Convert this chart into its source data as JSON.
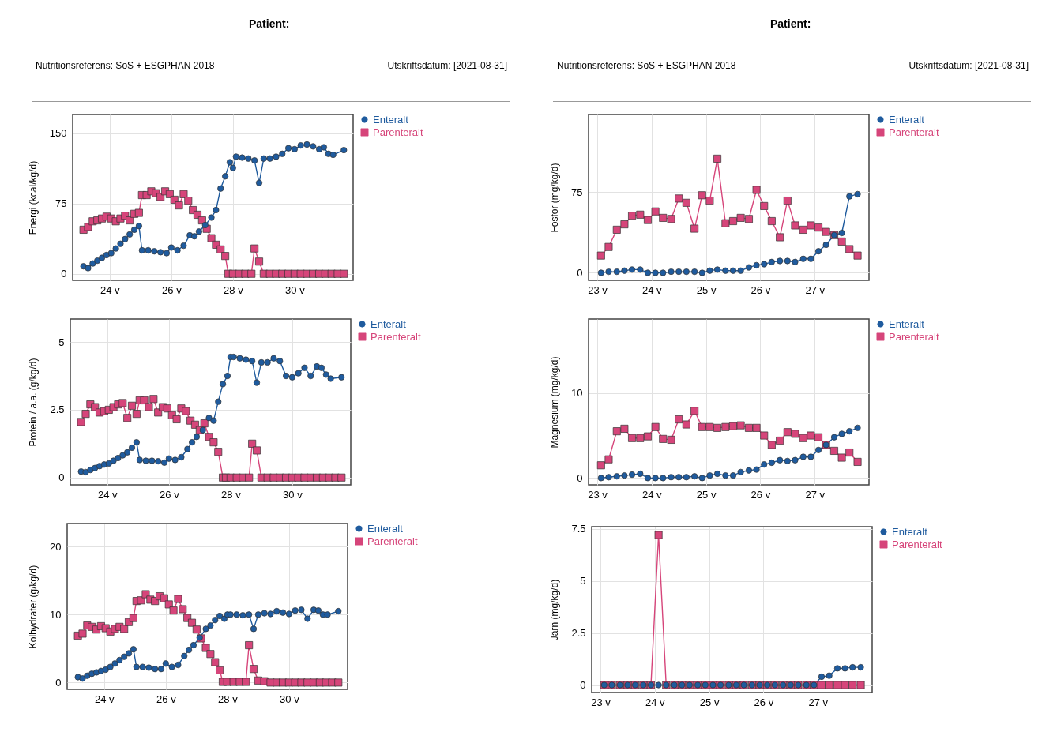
{
  "chart_data": [
    {
      "type": "line",
      "annotations": [
        "Patient:",
        "Nutritionsreferens: SoS + ESGPHAN 2018",
        "Utskriftsdatum: [2021-08-31]"
      ],
      "ylabel": "Energi (kcal/kg/d)",
      "xlim": [
        22.8,
        31.9
      ],
      "xticks": [
        {
          "value": 24,
          "label": "24 v"
        },
        {
          "value": 26,
          "label": "26 v"
        },
        {
          "value": 28,
          "label": "28 v"
        },
        {
          "value": 30,
          "label": "30 v"
        }
      ],
      "ylim": [
        -7,
        170
      ],
      "yticks": [
        0,
        75,
        150
      ],
      "grid": true,
      "legend": "top right",
      "series": [
        {
          "name": "Enteralt",
          "color": "#1f5b9e",
          "marker": "circle",
          "x": [
            23.15,
            23.3,
            23.45,
            23.6,
            23.75,
            23.9,
            24.05,
            24.2,
            24.35,
            24.5,
            24.65,
            24.8,
            24.95,
            25.05,
            25.25,
            25.45,
            25.65,
            25.85,
            26.0,
            26.2,
            26.4,
            26.6,
            26.75,
            26.9,
            27.1,
            27.3,
            27.45,
            27.6,
            27.75,
            27.9,
            28.0,
            28.1,
            28.3,
            28.5,
            28.7,
            28.85,
            29.0,
            29.2,
            29.4,
            29.6,
            29.8,
            30.0,
            30.2,
            30.4,
            30.6,
            30.8,
            30.95,
            31.1,
            31.25,
            31.6
          ],
          "values": [
            8,
            6,
            11,
            14,
            17,
            20,
            22,
            27,
            32,
            37,
            42,
            47,
            51,
            25,
            25,
            24,
            23,
            22,
            28,
            25,
            30,
            41,
            40,
            45,
            52,
            60,
            68,
            91,
            104,
            119,
            113,
            125,
            124,
            123,
            121,
            97,
            123,
            123,
            125,
            128,
            134,
            133,
            137,
            138,
            136,
            133,
            135,
            128,
            127,
            132
          ]
        },
        {
          "name": "Parenteralt",
          "color": "#d6457a",
          "marker": "square",
          "x": [
            23.15,
            23.3,
            23.45,
            23.6,
            23.75,
            23.9,
            24.05,
            24.2,
            24.35,
            24.5,
            24.65,
            24.8,
            24.95,
            25.05,
            25.2,
            25.35,
            25.5,
            25.65,
            25.8,
            25.95,
            26.1,
            26.25,
            26.4,
            26.55,
            26.7,
            26.85,
            27.0,
            27.15,
            27.3,
            27.45,
            27.6,
            27.75,
            27.85,
            28.0,
            28.2,
            28.4,
            28.6,
            28.7,
            28.85,
            29.0,
            29.2,
            29.4,
            29.6,
            29.8,
            30.0,
            30.2,
            30.4,
            30.6,
            30.8,
            31.0,
            31.2,
            31.4,
            31.6
          ],
          "values": [
            47,
            50,
            56,
            57,
            59,
            61,
            59,
            56,
            59,
            62,
            57,
            64,
            65,
            84,
            84,
            88,
            86,
            82,
            88,
            85,
            79,
            73,
            85,
            78,
            68,
            63,
            57,
            48,
            38,
            31,
            26,
            19,
            0,
            0,
            0,
            0,
            0,
            27,
            13,
            0,
            0,
            0,
            0,
            0,
            0,
            0,
            0,
            0,
            0,
            0,
            0,
            0,
            0
          ]
        }
      ]
    },
    {
      "type": "line",
      "ylabel": "Protein / a.a. (g/kg/d)",
      "xlim": [
        22.8,
        31.9
      ],
      "xticks": [
        {
          "value": 24,
          "label": "24 v"
        },
        {
          "value": 26,
          "label": "26 v"
        },
        {
          "value": 28,
          "label": "28 v"
        },
        {
          "value": 30,
          "label": "30 v"
        }
      ],
      "ylim": [
        -0.27,
        5.85
      ],
      "yticks": [
        0,
        2.5,
        5
      ],
      "grid": true,
      "legend": "top right",
      "series": [
        {
          "name": "Enteralt",
          "color": "#1f5b9e",
          "marker": "circle",
          "x": [
            23.15,
            23.3,
            23.45,
            23.6,
            23.75,
            23.9,
            24.05,
            24.2,
            24.35,
            24.5,
            24.65,
            24.8,
            24.95,
            25.05,
            25.25,
            25.45,
            25.65,
            25.85,
            26.0,
            26.2,
            26.4,
            26.6,
            26.75,
            26.9,
            27.1,
            27.3,
            27.45,
            27.6,
            27.75,
            27.9,
            28.0,
            28.1,
            28.3,
            28.5,
            28.7,
            28.85,
            29.0,
            29.2,
            29.4,
            29.6,
            29.8,
            30.0,
            30.2,
            30.4,
            30.6,
            30.8,
            30.95,
            31.1,
            31.25,
            31.6
          ],
          "values": [
            0.22,
            0.2,
            0.28,
            0.35,
            0.42,
            0.48,
            0.52,
            0.62,
            0.72,
            0.82,
            0.93,
            1.1,
            1.3,
            0.65,
            0.62,
            0.62,
            0.6,
            0.55,
            0.7,
            0.65,
            0.75,
            1.05,
            1.3,
            1.5,
            1.75,
            2.2,
            2.1,
            2.8,
            3.45,
            3.75,
            4.45,
            4.45,
            4.4,
            4.35,
            4.3,
            3.5,
            4.25,
            4.25,
            4.4,
            4.3,
            3.75,
            3.7,
            3.85,
            4.05,
            3.75,
            4.1,
            4.05,
            3.8,
            3.65,
            3.7
          ]
        },
        {
          "name": "Parenteralt",
          "color": "#d6457a",
          "marker": "square",
          "x": [
            23.15,
            23.3,
            23.45,
            23.6,
            23.75,
            23.9,
            24.05,
            24.2,
            24.35,
            24.5,
            24.65,
            24.8,
            24.95,
            25.05,
            25.2,
            25.35,
            25.5,
            25.65,
            25.8,
            25.95,
            26.1,
            26.25,
            26.4,
            26.55,
            26.7,
            26.85,
            27.0,
            27.15,
            27.3,
            27.45,
            27.6,
            27.75,
            27.85,
            28.0,
            28.2,
            28.4,
            28.6,
            28.7,
            28.85,
            29.0,
            29.2,
            29.4,
            29.6,
            29.8,
            30.0,
            30.2,
            30.4,
            30.6,
            30.8,
            31.0,
            31.2,
            31.4,
            31.6
          ],
          "values": [
            2.05,
            2.35,
            2.7,
            2.6,
            2.4,
            2.45,
            2.5,
            2.6,
            2.7,
            2.75,
            2.2,
            2.65,
            2.35,
            2.85,
            2.85,
            2.6,
            2.9,
            2.4,
            2.6,
            2.55,
            2.3,
            2.15,
            2.55,
            2.45,
            2.1,
            1.95,
            1.75,
            2.0,
            1.5,
            1.3,
            0.95,
            0,
            0,
            0,
            0,
            0,
            0,
            1.25,
            1.0,
            0,
            0,
            0,
            0,
            0,
            0,
            0,
            0,
            0,
            0,
            0,
            0,
            0,
            0
          ]
        }
      ]
    },
    {
      "type": "line",
      "ylabel": "Kolhydrater (g/kg/d)",
      "xlim": [
        22.8,
        31.9
      ],
      "xticks": [
        {
          "value": 24,
          "label": "24 v"
        },
        {
          "value": 26,
          "label": "26 v"
        },
        {
          "value": 28,
          "label": "28 v"
        },
        {
          "value": 30,
          "label": "30 v"
        }
      ],
      "ylim": [
        -1,
        23.4
      ],
      "yticks": [
        0,
        10,
        20
      ],
      "grid": true,
      "legend": "top right",
      "series": [
        {
          "name": "Enteralt",
          "color": "#1f5b9e",
          "marker": "circle",
          "x": [
            23.15,
            23.3,
            23.45,
            23.6,
            23.75,
            23.9,
            24.05,
            24.2,
            24.35,
            24.5,
            24.65,
            24.8,
            24.95,
            25.05,
            25.25,
            25.45,
            25.65,
            25.85,
            26.0,
            26.2,
            26.4,
            26.6,
            26.75,
            26.9,
            27.1,
            27.3,
            27.45,
            27.6,
            27.75,
            27.9,
            28.0,
            28.1,
            28.3,
            28.5,
            28.7,
            28.85,
            29.0,
            29.2,
            29.4,
            29.6,
            29.8,
            30.0,
            30.2,
            30.4,
            30.6,
            30.8,
            30.95,
            31.1,
            31.25,
            31.6
          ],
          "values": [
            0.8,
            0.6,
            1.0,
            1.3,
            1.5,
            1.7,
            1.9,
            2.3,
            2.8,
            3.3,
            3.8,
            4.3,
            4.9,
            2.3,
            2.3,
            2.2,
            2.0,
            2.0,
            2.8,
            2.3,
            2.6,
            3.9,
            4.8,
            5.5,
            6.6,
            7.9,
            8.4,
            9.2,
            9.8,
            9.4,
            10.0,
            10.0,
            10.0,
            9.9,
            10.0,
            7.9,
            10.0,
            10.2,
            10.1,
            10.5,
            10.3,
            10.1,
            10.6,
            10.7,
            9.4,
            10.7,
            10.6,
            10.0,
            10.0,
            10.5
          ]
        },
        {
          "name": "Parenteralt",
          "color": "#d6457a",
          "marker": "square",
          "x": [
            23.15,
            23.3,
            23.45,
            23.6,
            23.75,
            23.9,
            24.05,
            24.2,
            24.35,
            24.5,
            24.65,
            24.8,
            24.95,
            25.05,
            25.2,
            25.35,
            25.5,
            25.65,
            25.8,
            25.95,
            26.1,
            26.25,
            26.4,
            26.55,
            26.7,
            26.85,
            27.0,
            27.15,
            27.3,
            27.45,
            27.6,
            27.75,
            27.85,
            28.0,
            28.2,
            28.4,
            28.6,
            28.7,
            28.85,
            29.0,
            29.2,
            29.4,
            29.6,
            29.8,
            30.0,
            30.2,
            30.4,
            30.6,
            30.8,
            31.0,
            31.2,
            31.4,
            31.6
          ],
          "values": [
            6.9,
            7.2,
            8.4,
            8.2,
            7.8,
            8.3,
            8.0,
            7.5,
            7.9,
            8.2,
            7.9,
            8.9,
            9.5,
            12.0,
            12.1,
            13.0,
            12.2,
            12.0,
            12.7,
            12.4,
            11.5,
            10.6,
            12.3,
            10.8,
            9.5,
            8.8,
            7.8,
            6.5,
            5.1,
            4.2,
            3.0,
            1.8,
            0.1,
            0.1,
            0.1,
            0.1,
            0.1,
            5.5,
            2.0,
            0.3,
            0.2,
            0,
            0,
            0,
            0,
            0,
            0,
            0,
            0,
            0,
            0,
            0,
            0
          ]
        }
      ]
    },
    {
      "type": "line",
      "annotations": [
        "Patient:",
        "Nutritionsreferens: SoS + ESGPHAN 2018",
        "Utskriftsdatum: [2021-08-31]"
      ],
      "ylabel": "Fosfor (mg/kg/d)",
      "xlim": [
        22.84,
        28.0
      ],
      "xticks": [
        {
          "value": 23,
          "label": "23 v"
        },
        {
          "value": 24,
          "label": "24 v"
        },
        {
          "value": 25,
          "label": "25 v"
        },
        {
          "value": 26,
          "label": "26 v"
        },
        {
          "value": 27,
          "label": "27 v"
        }
      ],
      "ylim": [
        -7,
        147
      ],
      "yticks": [
        0,
        75
      ],
      "grid": true,
      "legend": "top right",
      "series": [
        {
          "name": "Enteralt",
          "color": "#1f5b9e",
          "marker": "circle",
          "x": [
            23.07,
            23.21,
            23.36,
            23.5,
            23.64,
            23.79,
            23.93,
            24.07,
            24.21,
            24.36,
            24.5,
            24.64,
            24.79,
            24.93,
            25.07,
            25.21,
            25.36,
            25.5,
            25.64,
            25.79,
            25.93,
            26.07,
            26.21,
            26.36,
            26.5,
            26.64,
            26.79,
            26.93,
            27.07,
            27.21,
            27.36,
            27.5,
            27.64,
            27.79
          ],
          "values": [
            0,
            1,
            1,
            2,
            3,
            3,
            0,
            0,
            0,
            1,
            1,
            1,
            1,
            0,
            2,
            3,
            2,
            2,
            2,
            5,
            7,
            8,
            10,
            11,
            11,
            10,
            13,
            13,
            20,
            26,
            35,
            37,
            71,
            73
          ]
        },
        {
          "name": "Parenteralt",
          "color": "#d6457a",
          "marker": "square",
          "x": [
            23.07,
            23.21,
            23.36,
            23.5,
            23.64,
            23.79,
            23.93,
            24.07,
            24.21,
            24.36,
            24.5,
            24.64,
            24.79,
            24.93,
            25.07,
            25.21,
            25.36,
            25.5,
            25.64,
            25.79,
            25.93,
            26.07,
            26.21,
            26.36,
            26.5,
            26.64,
            26.79,
            26.93,
            27.07,
            27.21,
            27.36,
            27.5,
            27.64,
            27.79
          ],
          "values": [
            16,
            24,
            40,
            45,
            53,
            54,
            49,
            57,
            51,
            50,
            69,
            65,
            41,
            72,
            67,
            106,
            46,
            48,
            51,
            50,
            77,
            62,
            48,
            33,
            67,
            44,
            40,
            44,
            42,
            38,
            35,
            29,
            22,
            16
          ]
        }
      ]
    },
    {
      "type": "line",
      "ylabel": "Magnesium (mg/kg/d)",
      "xlim": [
        22.84,
        28.0
      ],
      "xticks": [
        {
          "value": 23,
          "label": "23 v"
        },
        {
          "value": 24,
          "label": "24 v"
        },
        {
          "value": 25,
          "label": "25 v"
        },
        {
          "value": 26,
          "label": "26 v"
        },
        {
          "value": 27,
          "label": "27 v"
        }
      ],
      "ylim": [
        -0.8,
        18.7
      ],
      "yticks": [
        0,
        10
      ],
      "grid": true,
      "legend": "top right",
      "series": [
        {
          "name": "Enteralt",
          "color": "#1f5b9e",
          "marker": "circle",
          "x": [
            23.07,
            23.21,
            23.36,
            23.5,
            23.64,
            23.79,
            23.93,
            24.07,
            24.21,
            24.36,
            24.5,
            24.64,
            24.79,
            24.93,
            25.07,
            25.21,
            25.36,
            25.5,
            25.64,
            25.79,
            25.93,
            26.07,
            26.21,
            26.36,
            26.5,
            26.64,
            26.79,
            26.93,
            27.07,
            27.21,
            27.36,
            27.5,
            27.64,
            27.79
          ],
          "values": [
            0,
            0.1,
            0.2,
            0.3,
            0.4,
            0.5,
            0,
            0,
            0,
            0.1,
            0.1,
            0.1,
            0.2,
            0,
            0.3,
            0.5,
            0.3,
            0.3,
            0.7,
            0.9,
            1.0,
            1.6,
            1.8,
            2.1,
            2.0,
            2.1,
            2.5,
            2.5,
            3.3,
            3.9,
            4.8,
            5.2,
            5.5,
            5.9
          ]
        },
        {
          "name": "Parenteralt",
          "color": "#d6457a",
          "marker": "square",
          "x": [
            23.07,
            23.21,
            23.36,
            23.5,
            23.64,
            23.79,
            23.93,
            24.07,
            24.21,
            24.36,
            24.5,
            24.64,
            24.79,
            24.93,
            25.07,
            25.21,
            25.36,
            25.5,
            25.64,
            25.79,
            25.93,
            26.07,
            26.21,
            26.36,
            26.5,
            26.64,
            26.79,
            26.93,
            27.07,
            27.21,
            27.36,
            27.5,
            27.64,
            27.79
          ],
          "values": [
            1.5,
            2.2,
            5.5,
            5.8,
            4.7,
            4.7,
            4.9,
            6.0,
            4.6,
            4.5,
            6.9,
            6.3,
            7.9,
            6.0,
            6.0,
            5.9,
            6.0,
            6.1,
            6.2,
            5.9,
            5.9,
            5.0,
            3.9,
            4.4,
            5.4,
            5.2,
            4.7,
            5.0,
            4.8,
            3.9,
            3.2,
            2.4,
            3.0,
            1.9
          ]
        }
      ]
    },
    {
      "type": "line",
      "ylabel": "Järn (mg/kg/d)",
      "xlim": [
        22.84,
        28.0
      ],
      "xticks": [
        {
          "value": 23,
          "label": "23 v"
        },
        {
          "value": 24,
          "label": "24 v"
        },
        {
          "value": 25,
          "label": "25 v"
        },
        {
          "value": 26,
          "label": "26 v"
        },
        {
          "value": 27,
          "label": "27 v"
        }
      ],
      "ylim": [
        -0.36,
        7.6
      ],
      "yticks": [
        0,
        2.5,
        5,
        7.5
      ],
      "grid": true,
      "legend": "top right",
      "series": [
        {
          "name": "Enteralt",
          "color": "#1f5b9e",
          "marker": "circle",
          "x": [
            23.07,
            23.21,
            23.36,
            23.5,
            23.64,
            23.79,
            23.93,
            24.07,
            24.21,
            24.36,
            24.5,
            24.64,
            24.79,
            24.93,
            25.07,
            25.21,
            25.36,
            25.5,
            25.64,
            25.79,
            25.93,
            26.07,
            26.21,
            26.36,
            26.5,
            26.64,
            26.79,
            26.93,
            27.07,
            27.21,
            27.36,
            27.5,
            27.64,
            27.79
          ],
          "values": [
            0,
            0,
            0,
            0,
            0,
            0,
            0,
            0,
            0,
            0,
            0,
            0,
            0,
            0,
            0,
            0,
            0,
            0,
            0,
            0,
            0,
            0,
            0,
            0,
            0,
            0,
            0,
            0,
            0.4,
            0.45,
            0.8,
            0.8,
            0.85,
            0.85
          ]
        },
        {
          "name": "Parenteralt",
          "color": "#d6457a",
          "marker": "square",
          "x": [
            23.07,
            23.21,
            23.36,
            23.5,
            23.64,
            23.79,
            23.93,
            24.07,
            24.21,
            24.36,
            24.5,
            24.64,
            24.79,
            24.93,
            25.07,
            25.21,
            25.36,
            25.5,
            25.64,
            25.79,
            25.93,
            26.07,
            26.21,
            26.36,
            26.5,
            26.64,
            26.79,
            26.93,
            27.07,
            27.21,
            27.36,
            27.5,
            27.64,
            27.79
          ],
          "values": [
            0,
            0,
            0,
            0,
            0,
            0,
            0,
            7.2,
            0,
            0,
            0,
            0,
            0,
            0,
            0,
            0,
            0,
            0,
            0,
            0,
            0,
            0,
            0,
            0,
            0,
            0,
            0,
            0,
            0,
            0,
            0,
            0,
            0,
            0
          ]
        }
      ]
    }
  ]
}
